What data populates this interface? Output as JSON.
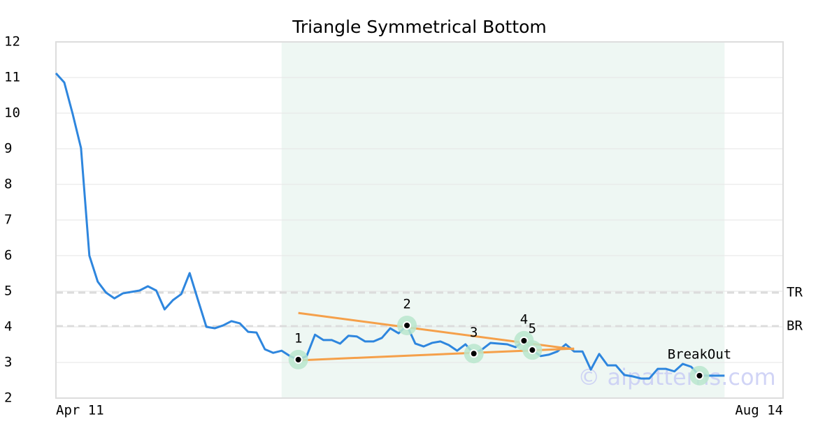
{
  "chart_data": {
    "type": "line",
    "title": "Triangle Symmetrical Bottom",
    "categories": [
      "Apr 11",
      null,
      null,
      null,
      null,
      null,
      null,
      null,
      null,
      null,
      null,
      null,
      null,
      null,
      null,
      null,
      null,
      null,
      null,
      null,
      null,
      null,
      null,
      null,
      null,
      null,
      null,
      null,
      null,
      null,
      null,
      null,
      null,
      null,
      null,
      null,
      null,
      null,
      null,
      null,
      null,
      null,
      null,
      null,
      null,
      null,
      null,
      null,
      null,
      null,
      null,
      null,
      null,
      null,
      null,
      null,
      null,
      null,
      null,
      null,
      null,
      null,
      null,
      null,
      null,
      null,
      null,
      null,
      null,
      null,
      null,
      null,
      null,
      null,
      null,
      null,
      null,
      null,
      null,
      null,
      null,
      null,
      null,
      null,
      null,
      null,
      null,
      "Aug 14"
    ],
    "values": [
      11.12,
      10.86,
      9.98,
      9.02,
      6.0,
      5.27,
      4.96,
      4.8,
      4.94,
      4.98,
      5.02,
      5.14,
      5.02,
      4.49,
      4.75,
      4.92,
      5.51,
      4.75,
      4.0,
      3.96,
      4.04,
      4.16,
      4.1,
      3.86,
      3.84,
      3.37,
      3.27,
      3.33,
      3.18,
      3.08,
      3.18,
      3.78,
      3.63,
      3.63,
      3.53,
      3.75,
      3.73,
      3.59,
      3.59,
      3.69,
      3.96,
      3.82,
      4.04,
      3.53,
      3.45,
      3.55,
      3.59,
      3.49,
      3.33,
      3.51,
      3.25,
      3.37,
      3.55,
      3.53,
      3.51,
      3.43,
      3.61,
      3.35,
      3.18,
      3.22,
      3.31,
      3.51,
      3.31,
      3.31,
      2.8,
      3.24,
      2.92,
      2.92,
      2.65,
      2.61,
      2.55,
      2.55,
      2.82,
      2.82,
      2.75,
      2.96,
      2.88,
      2.63,
      2.63,
      2.63,
      2.63,
      null,
      null,
      null,
      null,
      null,
      null,
      null
    ],
    "color": "#2e86de",
    "ylim": [
      2,
      12
    ],
    "yticks": [
      2,
      3,
      4,
      5,
      6,
      7,
      8,
      9,
      10,
      11,
      12
    ],
    "grid": true,
    "pattern_range": [
      27,
      80
    ],
    "pattern_color": "#eef7f3",
    "points": [
      {
        "label": "1",
        "index": 29,
        "value": 3.08
      },
      {
        "label": "2",
        "index": 42,
        "value": 4.04
      },
      {
        "label": "3",
        "index": 50,
        "value": 3.25
      },
      {
        "label": "4",
        "index": 56,
        "value": 3.61
      },
      {
        "label": "5",
        "index": 57,
        "value": 3.35
      },
      {
        "label": "BreakOut",
        "index": 77,
        "value": 2.63
      }
    ],
    "trend_lines": [
      {
        "from": [
          29,
          4.39
        ],
        "to": [
          62,
          3.37
        ]
      },
      {
        "from": [
          29,
          3.06
        ],
        "to": [
          62,
          3.39
        ]
      }
    ],
    "trend_color": "#f5a04a",
    "levels": [
      {
        "label": "TR",
        "value": 4.96
      },
      {
        "label": "BR",
        "value": 4.02
      }
    ],
    "watermark": "© aipatterns.com"
  }
}
